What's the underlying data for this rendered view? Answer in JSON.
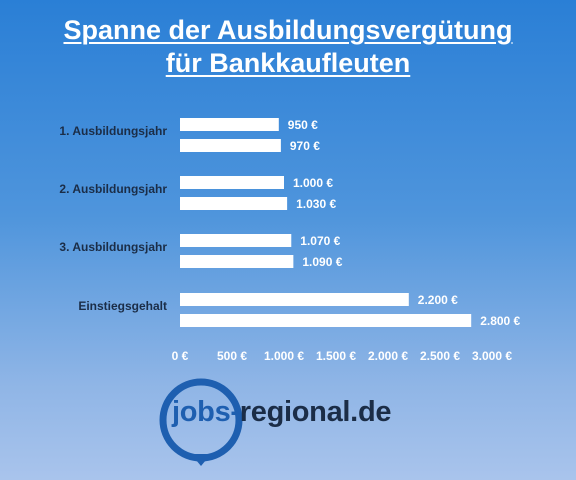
{
  "title": {
    "line1": "Spanne der Ausbildungsvergütung",
    "line2": "für Bankkaufleuten"
  },
  "colors": {
    "bar": "#ffffff",
    "text": "#1b2d47",
    "brand_blue": "#1e5fb0"
  },
  "chart_data": {
    "type": "bar",
    "orientation": "horizontal",
    "categories": [
      "1. Ausbildungsjahr",
      "2. Ausbildungsjahr",
      "3. Ausbildungsjahr",
      "Einstiegsgehalt"
    ],
    "bars": [
      [
        {
          "value": 950,
          "label": "950 €"
        },
        {
          "value": 970,
          "label": "970 €"
        }
      ],
      [
        {
          "value": 1000,
          "label": "1.000 €"
        },
        {
          "value": 1030,
          "label": "1.030 €"
        }
      ],
      [
        {
          "value": 1070,
          "label": "1.070 €"
        },
        {
          "value": 1090,
          "label": "1.090 €"
        }
      ],
      [
        {
          "value": 2200,
          "label": "2.200 €"
        },
        {
          "value": 2800,
          "label": "2.800 €"
        }
      ]
    ],
    "xticks": [
      "0 €",
      "500 €",
      "1.000 €",
      "1.500 €",
      "2.000 €",
      "2.500 €",
      "3.000 €"
    ],
    "xtick_values": [
      0,
      500,
      1000,
      1500,
      2000,
      2500,
      3000
    ],
    "xlim": [
      0,
      3000
    ],
    "grid": false
  },
  "logo": {
    "part1": "jobs-",
    "part2": "regional.de"
  }
}
